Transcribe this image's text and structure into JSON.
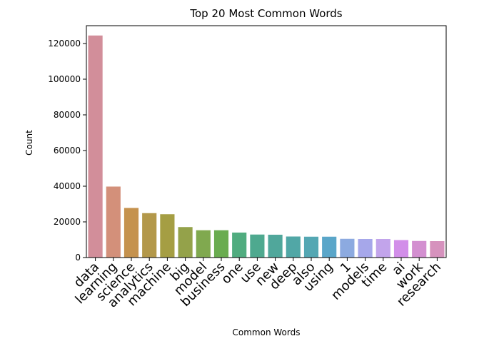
{
  "chart_data": {
    "type": "bar",
    "title": "Top 20 Most Common Words",
    "xlabel": "Common Words",
    "ylabel": "Count",
    "ylim": [
      0,
      130000
    ],
    "yticks": [
      0,
      20000,
      40000,
      60000,
      80000,
      100000,
      120000
    ],
    "grid": false,
    "legend": "none",
    "categories": [
      "data",
      "learning",
      "science",
      "analytics",
      "machine",
      "big",
      "model",
      "business",
      "one",
      "use",
      "new",
      "deep",
      "also",
      "using",
      "1",
      "models",
      "time",
      "ai",
      "work",
      "research"
    ],
    "values": [
      124500,
      39800,
      27800,
      24900,
      24300,
      17100,
      15300,
      15300,
      14000,
      12900,
      12800,
      11800,
      11700,
      11700,
      10500,
      10400,
      10400,
      9800,
      9300,
      9200
    ],
    "colors": [
      "#d28e9a",
      "#d3907a",
      "#c5924e",
      "#b3984a",
      "#a59e43",
      "#94a24a",
      "#80a94f",
      "#6aac50",
      "#50ac7f",
      "#4ea98f",
      "#50a79b",
      "#51a7a6",
      "#54a7b3",
      "#5aa6c9",
      "#8caae0",
      "#a6a7ea",
      "#c2a4eb",
      "#d28ee9",
      "#d38fd0",
      "#d692bd"
    ]
  }
}
